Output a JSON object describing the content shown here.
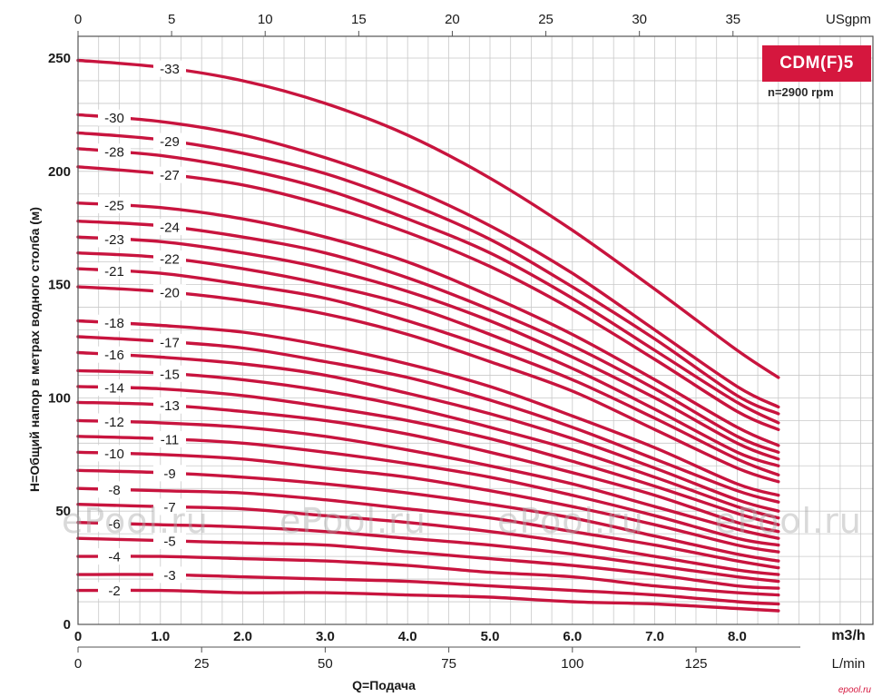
{
  "chart_data": {
    "type": "line",
    "model": "CDM(F)5",
    "speed_note": "n=2900 rpm",
    "xlabel": "Q=Подача",
    "ylabel": "H=Общий напор в метрах водного столба (м)",
    "x_unit": "m3/h",
    "x_secondary_bottom_unit": "L/min",
    "x_secondary_top_unit": "USgpm",
    "xlim": [
      0,
      8.5
    ],
    "ylim": [
      0,
      250
    ],
    "x_ticks": [
      "0",
      "1.0",
      "2.0",
      "3.0",
      "4.0",
      "5.0",
      "6.0",
      "7.0",
      "8.0"
    ],
    "y_ticks": [
      "0",
      "50",
      "100",
      "150",
      "200",
      "250"
    ],
    "lmin_ticks": [
      "0",
      "25",
      "50",
      "75",
      "100",
      "125"
    ],
    "usgpm_ticks": [
      "0",
      "5",
      "10",
      "15",
      "20",
      "25",
      "30",
      "35"
    ],
    "grid": true,
    "curve_color": "#c8143e",
    "x": [
      0,
      1,
      2,
      3,
      4,
      5,
      6,
      7,
      8,
      8.5
    ],
    "series": [
      {
        "name": "-33",
        "values": [
          249,
          246,
          240,
          230,
          216,
          197,
          174,
          148,
          121,
          109
        ]
      },
      {
        "name": "-30",
        "values": [
          225,
          222,
          216,
          206,
          193,
          176,
          155,
          130,
          105,
          96
        ]
      },
      {
        "name": "-29",
        "values": [
          217,
          214,
          208,
          199,
          186,
          170,
          149,
          126,
          101,
          93
        ]
      },
      {
        "name": "-28",
        "values": [
          210,
          207,
          201,
          192,
          179,
          164,
          144,
          121,
          98,
          89
        ]
      },
      {
        "name": "-27",
        "values": [
          202,
          199,
          194,
          185,
          173,
          158,
          139,
          117,
          94,
          86
        ]
      },
      {
        "name": "-25",
        "values": [
          186,
          184,
          179,
          171,
          160,
          145,
          128,
          108,
          87,
          79
        ]
      },
      {
        "name": "-24",
        "values": [
          178,
          176,
          171,
          164,
          153,
          139,
          123,
          104,
          83,
          76
        ]
      },
      {
        "name": "-23",
        "values": [
          171,
          169,
          164,
          157,
          147,
          134,
          118,
          100,
          80,
          73
        ]
      },
      {
        "name": "-22",
        "values": [
          164,
          162,
          157,
          150,
          141,
          128,
          113,
          95,
          76,
          70
        ]
      },
      {
        "name": "-21",
        "values": [
          157,
          155,
          150,
          144,
          134,
          122,
          108,
          91,
          73,
          66
        ]
      },
      {
        "name": "-20",
        "values": [
          149,
          147,
          143,
          137,
          128,
          116,
          103,
          86,
          69,
          63
        ]
      },
      {
        "name": "-18",
        "values": [
          134,
          132,
          129,
          123,
          115,
          105,
          92,
          78,
          62,
          57
        ]
      },
      {
        "name": "-17",
        "values": [
          127,
          125,
          122,
          116,
          109,
          99,
          87,
          73,
          59,
          54
        ]
      },
      {
        "name": "-16",
        "values": [
          120,
          118,
          115,
          110,
          102,
          93,
          82,
          69,
          55,
          50
        ]
      },
      {
        "name": "-15",
        "values": [
          112,
          111,
          108,
          103,
          96,
          87,
          77,
          65,
          52,
          47
        ]
      },
      {
        "name": "-14",
        "values": [
          105,
          104,
          101,
          96,
          90,
          82,
          72,
          61,
          49,
          44
        ]
      },
      {
        "name": "-13",
        "values": [
          98,
          97,
          94,
          90,
          84,
          76,
          67,
          57,
          45,
          41
        ]
      },
      {
        "name": "-12",
        "values": [
          90,
          89,
          87,
          83,
          77,
          70,
          62,
          52,
          42,
          38
        ]
      },
      {
        "name": "-11",
        "values": [
          83,
          82,
          80,
          76,
          71,
          65,
          57,
          48,
          38,
          35
        ]
      },
      {
        "name": "-10",
        "values": [
          76,
          75,
          73,
          69,
          65,
          59,
          52,
          44,
          35,
          32
        ]
      },
      {
        "name": "-9",
        "values": [
          68,
          67,
          65,
          62,
          58,
          53,
          47,
          39,
          31,
          28
        ]
      },
      {
        "name": "-8",
        "values": [
          60,
          59,
          58,
          55,
          51,
          47,
          41,
          35,
          28,
          25
        ]
      },
      {
        "name": "-7",
        "values": [
          53,
          52,
          51,
          48,
          45,
          41,
          36,
          30,
          24,
          22
        ]
      },
      {
        "name": "-6",
        "values": [
          45,
          44,
          43,
          41,
          38,
          35,
          31,
          26,
          21,
          19
        ]
      },
      {
        "name": "-5",
        "values": [
          38,
          37,
          36,
          35,
          32,
          29,
          26,
          22,
          17,
          16
        ]
      },
      {
        "name": "-4",
        "values": [
          30,
          30,
          29,
          28,
          26,
          23,
          21,
          17,
          14,
          13
        ]
      },
      {
        "name": "-3",
        "values": [
          22,
          22,
          21,
          20,
          19,
          17,
          15,
          13,
          10,
          9
        ]
      },
      {
        "name": "-2",
        "values": [
          15,
          15,
          14,
          14,
          13,
          12,
          10,
          9,
          7,
          6
        ]
      }
    ],
    "label_positions": {
      "-33": "right",
      "-30": "left",
      "-29": "right",
      "-28": "left",
      "-27": "right",
      "-25": "left",
      "-24": "right",
      "-23": "left",
      "-22": "right",
      "-21": "left",
      "-20": "right",
      "-18": "left",
      "-17": "right",
      "-16": "left",
      "-15": "right",
      "-14": "left",
      "-13": "right",
      "-12": "left",
      "-11": "right",
      "-10": "left",
      "-9": "right",
      "-8": "left",
      "-7": "right",
      "-6": "left",
      "-5": "right",
      "-4": "left",
      "-3": "right",
      "-2": "left"
    }
  },
  "watermark_text": "ePool.ru",
  "source_tag": "epool.ru"
}
